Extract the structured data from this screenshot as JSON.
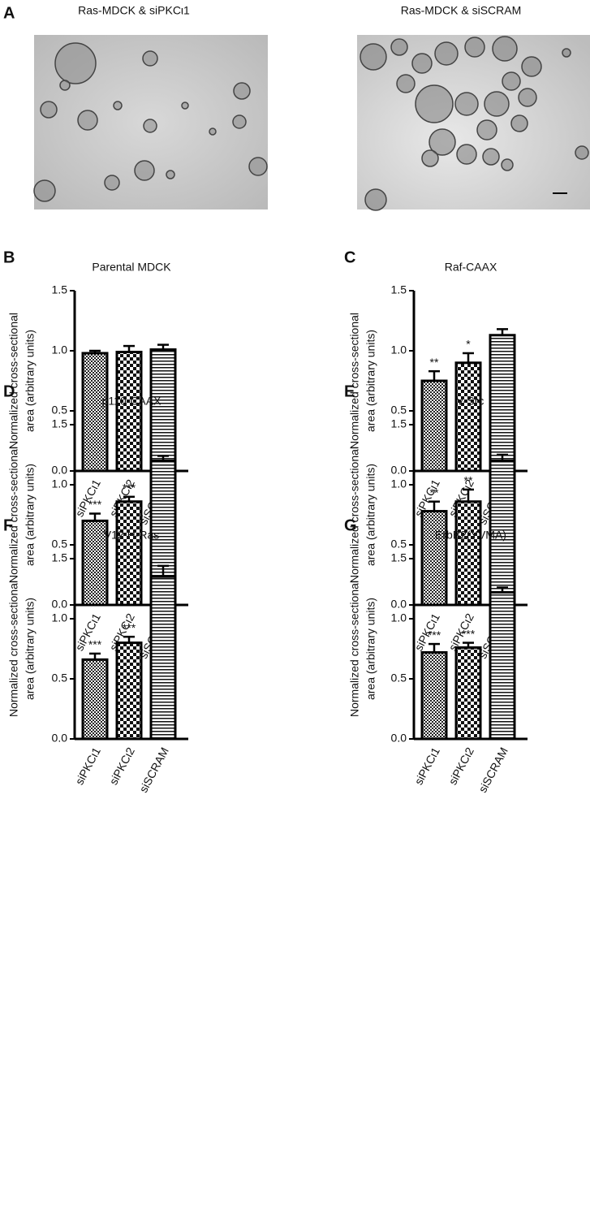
{
  "panel_a": {
    "label": "A",
    "images": [
      {
        "title": "Ras-MDCK & siPKCι1"
      },
      {
        "title": "Ras-MDCK & siSCRAM"
      }
    ]
  },
  "chart_data": [
    {
      "type": "bar",
      "panel": "B",
      "title": "Parental MDCK",
      "ylabel": [
        "Normalized cross-sectional",
        "area (arbitrary units)"
      ],
      "categories": [
        "siPKCι1",
        "siPKCι2",
        "siSCRAM"
      ],
      "values": [
        0.98,
        0.99,
        1.01
      ],
      "errors": [
        0.02,
        0.05,
        0.04
      ],
      "annotations": [
        null,
        null,
        null
      ],
      "ylim": [
        0,
        1.5
      ],
      "yticks": [
        {
          "value": 0,
          "label": "0.0"
        },
        0.5,
        {
          "value": 1,
          "label": "1.0"
        },
        1.5
      ]
    },
    {
      "type": "bar",
      "panel": "C",
      "title": "Raf-CAAX",
      "ylabel": [
        "Normalized cross-sectional",
        "area (arbitrary units)"
      ],
      "categories": [
        "siPKCι1",
        "siPKCι2",
        "siSCRAM"
      ],
      "values": [
        0.75,
        0.9,
        1.13
      ],
      "errors": [
        0.08,
        0.08,
        0.05
      ],
      "annotations": [
        "**",
        "*",
        null
      ],
      "ylim": [
        0,
        1.5
      ],
      "yticks": [
        {
          "value": 0,
          "label": "0.0"
        },
        0.5,
        {
          "value": 1,
          "label": "1.0"
        },
        1.5
      ]
    },
    {
      "type": "bar",
      "panel": "D",
      "title": "p110-CAAX",
      "ylabel": [
        "Normalized cross-sectional",
        "area (arbitrary units)"
      ],
      "categories": [
        "siPKCι1",
        "siPKCι2",
        "siSCRAM"
      ],
      "values": [
        0.7,
        0.86,
        1.2
      ],
      "errors": [
        0.06,
        0.04,
        0.04
      ],
      "annotations": [
        "***",
        "***",
        null
      ],
      "ylim": [
        0,
        1.5
      ],
      "yticks": [
        {
          "value": 0,
          "label": "0.0"
        },
        0.5,
        {
          "value": 1,
          "label": "1.0"
        },
        1.5
      ]
    },
    {
      "type": "bar",
      "panel": "E",
      "title": "v-Src",
      "ylabel": [
        "Normalized cross-sectional",
        "area (arbitrary units)"
      ],
      "categories": [
        "siPKCι1",
        "siPKCι2",
        "siSCRAM"
      ],
      "values": [
        0.78,
        0.86,
        1.2
      ],
      "errors": [
        0.08,
        0.1,
        0.05
      ],
      "annotations": [
        "**",
        "**",
        null
      ],
      "ylim": [
        0,
        1.5
      ],
      "yticks": [
        {
          "value": 0,
          "label": "0.0"
        },
        0.5,
        {
          "value": 1,
          "label": "1.0"
        },
        1.5
      ]
    },
    {
      "type": "bar",
      "panel": "F",
      "title": "V12 H-Ras",
      "ylabel": [
        "Normalized cross-sectional",
        "area (arbitrary units)"
      ],
      "categories": [
        "siPKCι1",
        "siPKCι2",
        "siSCRAM"
      ],
      "values": [
        0.66,
        0.8,
        1.35
      ],
      "errors": [
        0.05,
        0.05,
        0.09
      ],
      "annotations": [
        "***",
        "***",
        null
      ],
      "ylim": [
        0,
        1.5
      ],
      "yticks": [
        {
          "value": 0,
          "label": "0.0"
        },
        0.5,
        {
          "value": 1,
          "label": "1.0"
        },
        1.5
      ]
    },
    {
      "type": "bar",
      "panel": "G",
      "title": "ErbB2(YVMA)",
      "ylabel": [
        "Normalized cross-sectional",
        "area (arbitrary units)"
      ],
      "categories": [
        "siPKCι1",
        "siPKCι2",
        "siSCRAM"
      ],
      "values": [
        0.72,
        0.76,
        1.22
      ],
      "errors": [
        0.07,
        0.04,
        0.04
      ],
      "annotations": [
        "***",
        "***",
        null
      ],
      "ylim": [
        0,
        1.5
      ],
      "yticks": [
        {
          "value": 0,
          "label": "0.0"
        },
        0.5,
        {
          "value": 1,
          "label": "1.0"
        },
        1.5
      ]
    }
  ]
}
